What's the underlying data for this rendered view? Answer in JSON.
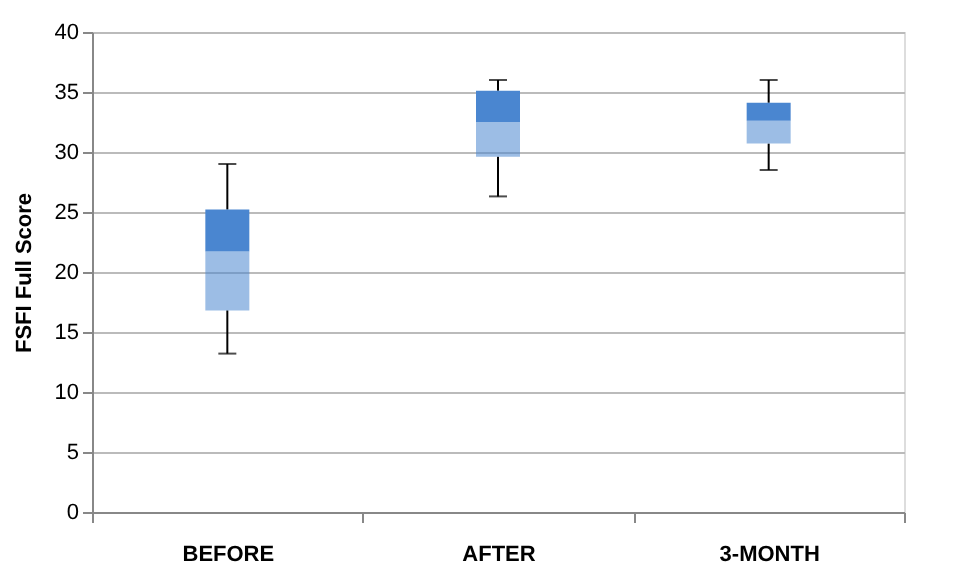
{
  "chart_data": {
    "type": "box",
    "ylabel": "FSFI Full Score",
    "categories": [
      "BEFORE",
      "AFTER",
      "3-MONTH"
    ],
    "series": [
      {
        "color": "#4a86d0",
        "boxes": [
          {
            "low": 13.2,
            "q1": 16.8,
            "median": 21.7,
            "q3": 25.2,
            "high": 29.0
          },
          {
            "low": 26.3,
            "q1": 29.6,
            "median": 32.5,
            "q3": 35.1,
            "high": 36.0
          },
          {
            "low": 28.5,
            "q1": 30.7,
            "median": 32.6,
            "q3": 34.1,
            "high": 36.0
          }
        ]
      }
    ],
    "ylim": [
      0,
      40
    ],
    "yticks": [
      0,
      5,
      10,
      15,
      20,
      25,
      30,
      35,
      40
    ],
    "grid": "y",
    "legend": false
  }
}
